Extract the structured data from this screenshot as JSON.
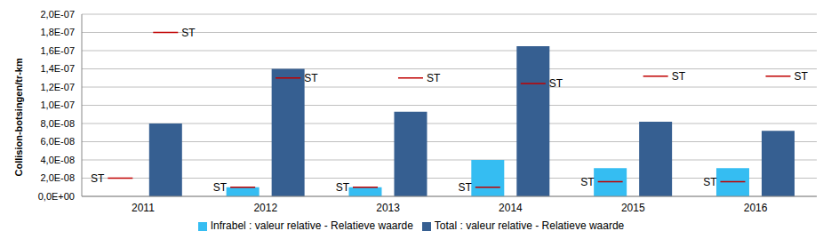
{
  "chart_data": {
    "type": "bar",
    "y_label": "Collision-botsingen/tr-km",
    "categories": [
      "2011",
      "2012",
      "2013",
      "2014",
      "2015",
      "2016"
    ],
    "series": [
      {
        "name": "Infrabel : valeur relative - Relatieve waarde",
        "color": "#35BDF2",
        "values": [
          0,
          1e-08,
          1e-08,
          4e-08,
          3.1e-08,
          3.1e-08
        ],
        "targets": [
          2e-08,
          1e-08,
          1e-08,
          1e-08,
          1.6e-08,
          1.6e-08
        ]
      },
      {
        "name": "Total : valeur relative - Relatieve waarde",
        "color": "#365F91",
        "values": [
          8e-08,
          1.4e-07,
          9.3e-08,
          1.65e-07,
          8.2e-08,
          7.2e-08
        ],
        "targets": [
          1.8e-07,
          1.3e-07,
          1.3e-07,
          1.24e-07,
          1.32e-07,
          1.32e-07
        ]
      }
    ],
    "target_label": "ST",
    "target_color": "#C00000",
    "ylim": [
      0,
      2e-07
    ],
    "yticks": [
      {
        "value": 0,
        "label": "0,0E+00"
      },
      {
        "value": 2e-08,
        "label": "2,0E-08"
      },
      {
        "value": 4e-08,
        "label": "4,0E-08"
      },
      {
        "value": 6e-08,
        "label": "6,0E-08"
      },
      {
        "value": 8e-08,
        "label": "8,0E-08"
      },
      {
        "value": 1e-07,
        "label": "1,0E-07"
      },
      {
        "value": 1.2e-07,
        "label": "1,2E-07"
      },
      {
        "value": 1.4e-07,
        "label": "1,4E-07"
      },
      {
        "value": 1.6e-07,
        "label": "1,6E-07"
      },
      {
        "value": 1.8e-07,
        "label": "1,8E-07"
      },
      {
        "value": 2e-07,
        "label": "2,0E-07"
      }
    ],
    "grid": true,
    "legend": "bottom"
  }
}
